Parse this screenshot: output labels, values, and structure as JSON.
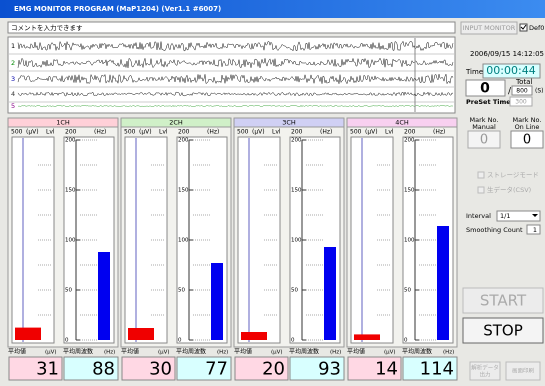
{
  "window": {
    "title": "EMG MONITOR PROGRAM (MaP1204)  (Ver1.1 #6007)"
  },
  "comment_placeholder": "コメントを入力できます",
  "input_monitor": "INPUT MONITOR",
  "def_checkbox": "Def0",
  "waveform": {
    "rows": [
      "1",
      "2",
      "3",
      "4",
      "5"
    ]
  },
  "status": {
    "datetime": "2006/09/15 14:12:05",
    "time_label": "Time",
    "time": "00:00:44",
    "count": "0",
    "separator": "/",
    "total_label": "Total",
    "total": "800",
    "total_unit": "(S)",
    "preset_label": "PreSet Timer",
    "preset": "300"
  },
  "marks": {
    "manual_label": [
      "Mark No.",
      "Manual"
    ],
    "manual": "0",
    "online_label": [
      "Mark No.",
      "On Line"
    ],
    "online": "0"
  },
  "options": [
    "ストレージモード",
    "生データ(CSV)"
  ],
  "interval": {
    "label": "Interval",
    "value": "1/1"
  },
  "smoothing": {
    "label": "Smoothing Count",
    "value": "1"
  },
  "buttons": {
    "start": "START",
    "stop": "STOP",
    "export": [
      "解析データ",
      "出力"
    ],
    "print": "画面印刷"
  },
  "channels": [
    {
      "name": "1CH",
      "color": "#ffd0d8",
      "amp_max": 500,
      "amp_unit": "(μV)",
      "lvl": "Lvl",
      "freq_max": 200,
      "freq_unit": "(Hz)",
      "freq_ticks": [
        200,
        150,
        100,
        50,
        0
      ],
      "amp_label": "平均値",
      "amp_foot_unit": "(μV)",
      "freq_label": "平均周波数",
      "freq_foot_unit": "(Hz)",
      "amp_value": 31,
      "freq_value": 88
    },
    {
      "name": "2CH",
      "color": "#d0f0c8",
      "amp_max": 500,
      "amp_unit": "(μV)",
      "lvl": "Lvl",
      "freq_max": 200,
      "freq_unit": "(Hz)",
      "freq_ticks": [
        200,
        150,
        100,
        50,
        0
      ],
      "amp_label": "平均値",
      "amp_foot_unit": "(μV)",
      "freq_label": "平均周波数",
      "freq_foot_unit": "(Hz)",
      "amp_value": 30,
      "freq_value": 77
    },
    {
      "name": "3CH",
      "color": "#d0d0f4",
      "amp_max": 500,
      "amp_unit": "(μV)",
      "lvl": "Lvl",
      "freq_max": 200,
      "freq_unit": "(Hz)",
      "freq_ticks": [
        200,
        150,
        100,
        50,
        0
      ],
      "amp_label": "平均値",
      "amp_foot_unit": "(μV)",
      "freq_label": "平均周波数",
      "freq_foot_unit": "(Hz)",
      "amp_value": 20,
      "freq_value": 93
    },
    {
      "name": "4CH",
      "color": "#f8d0f0",
      "amp_max": 500,
      "amp_unit": "(μV)",
      "lvl": "Lvl",
      "freq_max": 200,
      "freq_unit": "(Hz)",
      "freq_ticks": [
        200,
        150,
        100,
        50,
        0
      ],
      "amp_label": "平均値",
      "amp_foot_unit": "(μV)",
      "freq_label": "平均周波数",
      "freq_foot_unit": "(Hz)",
      "amp_value": 14,
      "freq_value": 114
    }
  ]
}
